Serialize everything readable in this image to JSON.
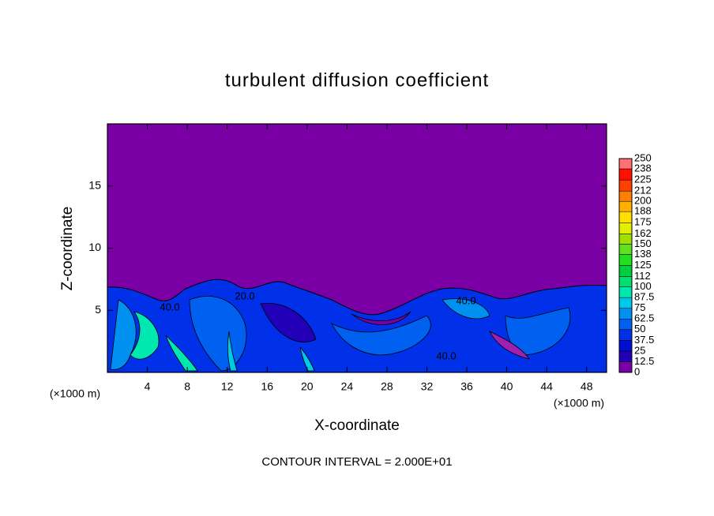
{
  "chart_data": {
    "type": "contour",
    "title": "turbulent diffusion coefficient",
    "x_label": "X-coordinate",
    "y_label": "Z-coordinate",
    "x_unit_left": "(×1000 m)",
    "x_unit_right": "(×1000 m)",
    "footer": "CONTOUR INTERVAL = 2.000E+01",
    "contour_labels": [
      "20.0",
      "40.0",
      "40.0",
      "40.0"
    ],
    "xlim": [
      0,
      50
    ],
    "xticks": [
      4,
      8,
      12,
      16,
      20,
      24,
      28,
      32,
      36,
      40,
      44,
      48
    ],
    "ylim": [
      0,
      20
    ],
    "yticks": [
      5,
      10,
      15
    ],
    "colorbar": {
      "lim": [
        0,
        250
      ],
      "ticks": [
        0,
        12.5,
        25,
        37.5,
        50,
        62.5,
        75,
        87.5,
        100,
        112,
        125,
        138,
        150,
        162,
        175,
        188,
        200,
        212,
        225,
        238,
        250
      ],
      "colors": [
        "#7a00a6",
        "#2200b8",
        "#0010d0",
        "#0030e8",
        "#0060f0",
        "#0090f0",
        "#00c8e8",
        "#00e8b0",
        "#00e070",
        "#00d040",
        "#20e020",
        "#60e020",
        "#a0e000",
        "#e0f000",
        "#ffe000",
        "#ffb000",
        "#ff8000",
        "#ff4000",
        "#ff1000",
        "#ff7070"
      ]
    }
  }
}
